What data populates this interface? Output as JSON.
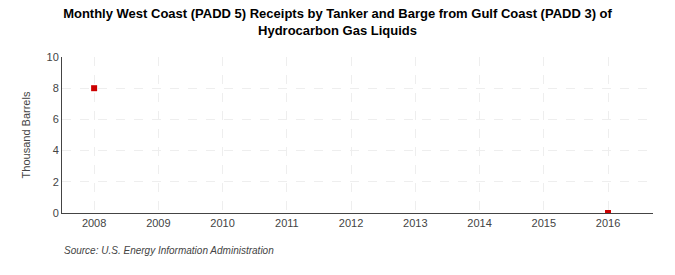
{
  "chart_data": {
    "type": "scatter",
    "title": "Monthly West Coast (PADD 5) Receipts by Tanker and Barge from Gulf Coast (PADD 3) of\nHydrocarbon Gas Liquids",
    "ylabel": "Thousand Barrels",
    "annotations": [
      "Source: U.S. Energy Information Administration"
    ],
    "x": [
      2008,
      2016
    ],
    "values": [
      8,
      0
    ],
    "color": "#cc0000",
    "marker": "square",
    "xlim": [
      2007.5,
      2016.7
    ],
    "xticks": [
      2008,
      2009,
      2010,
      2011,
      2012,
      2013,
      2014,
      2015,
      2016
    ],
    "ylim": [
      0,
      10
    ],
    "yticks": [
      0,
      2,
      4,
      6,
      8,
      10
    ],
    "grid": true
  }
}
